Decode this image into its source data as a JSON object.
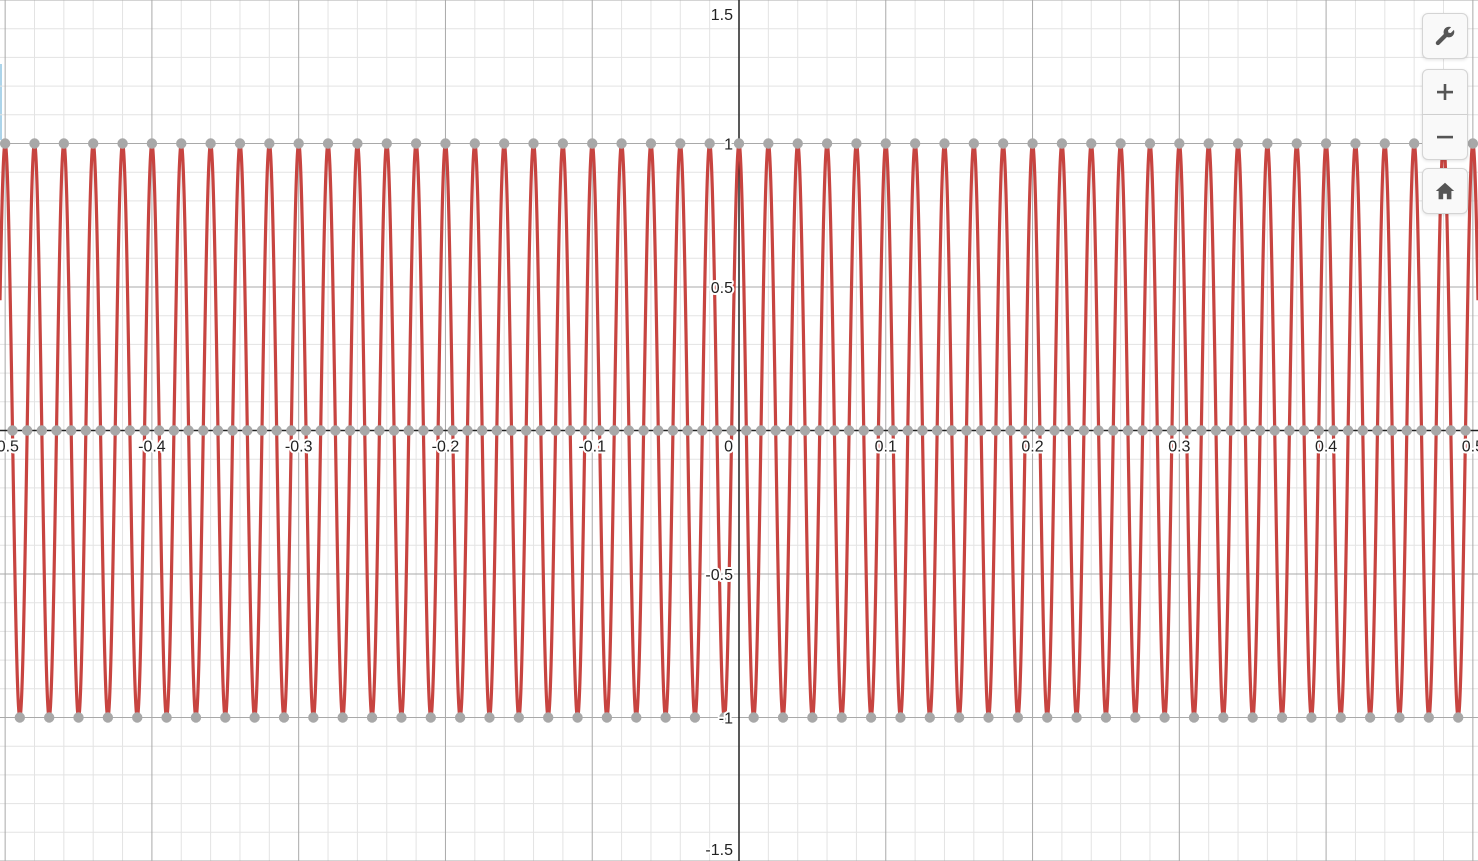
{
  "chart_data": {
    "type": "line",
    "xlim": [
      -0.5035,
      0.5035
    ],
    "ylim": [
      -1.5,
      1.5
    ],
    "grid": true,
    "x_ticks": [
      {
        "value": -0.5,
        "label": "-0.5"
      },
      {
        "value": -0.4,
        "label": "-0.4"
      },
      {
        "value": -0.3,
        "label": "-0.3"
      },
      {
        "value": -0.2,
        "label": "-0.2"
      },
      {
        "value": -0.1,
        "label": "-0.1"
      },
      {
        "value": 0.1,
        "label": "0.1"
      },
      {
        "value": 0.2,
        "label": "0.2"
      },
      {
        "value": 0.3,
        "label": "0.3"
      },
      {
        "value": 0.4,
        "label": "0.4"
      },
      {
        "value": 0.5,
        "label": "0.5"
      }
    ],
    "origin_label": "0",
    "y_ticks": [
      {
        "value": 1.5,
        "label": "1.5"
      },
      {
        "value": 1,
        "label": "1"
      },
      {
        "value": 0.5,
        "label": "0.5"
      },
      {
        "value": -0.5,
        "label": "-0.5"
      },
      {
        "value": -1,
        "label": "-1"
      },
      {
        "value": -1.5,
        "label": "-1.5"
      }
    ],
    "series": [
      {
        "expression": "y = cos(100πx)",
        "amplitude": 1,
        "period": 0.02,
        "color": "#c74440",
        "show_points": true,
        "point_color": "#a8a8a8"
      }
    ]
  },
  "controls": {
    "wrench": "wrench-icon",
    "zoom_in": "plus-icon",
    "zoom_out": "minus-icon",
    "home": "home-icon"
  },
  "colors": {
    "curve": "#c74440",
    "points": "#a8a8a8",
    "axis": "#222222",
    "major_grid": "#a9a9a9",
    "minor_grid": "#e3e3e3"
  }
}
